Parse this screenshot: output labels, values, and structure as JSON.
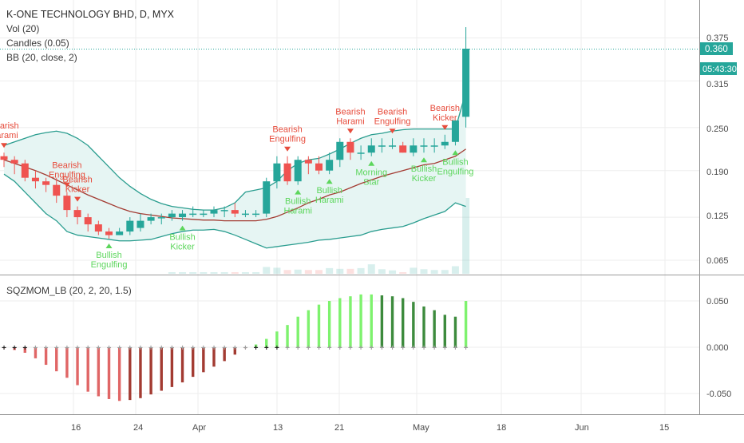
{
  "header": {
    "symbol_line": "K-ONE TECHNOLOGY BHD, D, MYX",
    "vol_line": "Vol (20)",
    "candles_line": "Candles (0.05)",
    "bb_line": "BB (20, close, 2)",
    "osc_line": "SQZMOM_LB (20, 2, 20, 1.5)"
  },
  "price_scale": {
    "ticks": [
      "0.375",
      "0.315",
      "0.250",
      "0.190",
      "0.125",
      "0.065"
    ],
    "current_price": "0.360",
    "countdown": "05:43:30"
  },
  "osc_scale": {
    "ticks": [
      "0.050",
      "0.000",
      "-0.050"
    ]
  },
  "time_axis": {
    "labels": [
      "16",
      "24",
      "Apr",
      "13",
      "21",
      "May",
      "18",
      "Jun",
      "15"
    ]
  },
  "colors": {
    "bull": "#26a69a",
    "bear": "#ef5350",
    "bb_band": "#2a9d8f",
    "bb_fill": "#e6f5f3",
    "bb_basis": "#a33b32",
    "mom_lime": "#7ef26e",
    "mom_green": "#3d8b3d",
    "mom_red": "#e06666",
    "mom_maroon": "#a33b32",
    "pattern_bear": "#e74c3c",
    "pattern_bull": "#5cd65c"
  },
  "chart_data": [
    {
      "type": "candlestick",
      "title": "K-ONE TECHNOLOGY BHD, D, MYX",
      "ylim": [
        0.04,
        0.4
      ],
      "ticks": [
        0.375,
        0.315,
        0.25,
        0.19,
        0.125,
        0.065
      ],
      "last_price": 0.36,
      "x": [
        "Mar 9",
        "Mar 10",
        "Mar 11",
        "Mar 12",
        "Mar 13",
        "Mar 16",
        "Mar 17",
        "Mar 18",
        "Mar 19",
        "Mar 20",
        "Mar 23",
        "Mar 24",
        "Mar 25",
        "Mar 26",
        "Mar 27",
        "Mar 30",
        "Mar 31",
        "Apr 1",
        "Apr 2",
        "Apr 3",
        "Apr 6",
        "Apr 7",
        "Apr 8",
        "Apr 9",
        "Apr 10",
        "Apr 13",
        "Apr 14",
        "Apr 15",
        "Apr 16",
        "Apr 17",
        "Apr 20",
        "Apr 21",
        "Apr 22",
        "Apr 23",
        "Apr 24",
        "Apr 27",
        "Apr 28",
        "Apr 29",
        "Apr 30",
        "May 4",
        "May 5",
        "May 6",
        "May 8",
        "May 11",
        "May 12"
      ],
      "series": [
        {
          "open": [
            0.21,
            0.205,
            0.2,
            0.18,
            0.175,
            0.17,
            0.155,
            0.135,
            0.125,
            0.115,
            0.105,
            0.1,
            0.105,
            0.11,
            0.12,
            0.125,
            0.125,
            0.125,
            0.13,
            0.13,
            0.13,
            0.135,
            0.135,
            0.13,
            0.13,
            0.13,
            0.175,
            0.2,
            0.175,
            0.205,
            0.2,
            0.19,
            0.205,
            0.23,
            0.215,
            0.215,
            0.225,
            0.225,
            0.225,
            0.215,
            0.225,
            0.225,
            0.225,
            0.23,
            0.265
          ],
          "high": [
            0.215,
            0.21,
            0.205,
            0.19,
            0.18,
            0.18,
            0.16,
            0.14,
            0.13,
            0.12,
            0.11,
            0.11,
            0.125,
            0.13,
            0.13,
            0.13,
            0.135,
            0.135,
            0.14,
            0.135,
            0.14,
            0.14,
            0.145,
            0.135,
            0.135,
            0.18,
            0.21,
            0.21,
            0.21,
            0.21,
            0.21,
            0.215,
            0.235,
            0.235,
            0.225,
            0.235,
            0.235,
            0.235,
            0.23,
            0.235,
            0.235,
            0.235,
            0.24,
            0.26,
            0.39
          ],
          "low": [
            0.195,
            0.185,
            0.175,
            0.165,
            0.16,
            0.145,
            0.125,
            0.115,
            0.105,
            0.1,
            0.095,
            0.1,
            0.1,
            0.105,
            0.115,
            0.115,
            0.12,
            0.12,
            0.125,
            0.125,
            0.125,
            0.125,
            0.125,
            0.125,
            0.125,
            0.125,
            0.165,
            0.17,
            0.17,
            0.185,
            0.185,
            0.185,
            0.195,
            0.205,
            0.205,
            0.21,
            0.215,
            0.22,
            0.215,
            0.21,
            0.215,
            0.215,
            0.22,
            0.225,
            0.25
          ],
          "close": [
            0.205,
            0.2,
            0.18,
            0.175,
            0.17,
            0.155,
            0.135,
            0.125,
            0.115,
            0.105,
            0.1,
            0.105,
            0.12,
            0.12,
            0.125,
            0.125,
            0.13,
            0.13,
            0.13,
            0.13,
            0.135,
            0.135,
            0.13,
            0.13,
            0.13,
            0.175,
            0.2,
            0.175,
            0.205,
            0.2,
            0.19,
            0.205,
            0.23,
            0.215,
            0.215,
            0.225,
            0.225,
            0.225,
            0.215,
            0.225,
            0.225,
            0.225,
            0.23,
            0.26,
            0.36
          ]
        },
        {
          "name": "BB upper",
          "values": [
            0.225,
            0.23,
            0.235,
            0.24,
            0.243,
            0.245,
            0.242,
            0.235,
            0.225,
            0.21,
            0.195,
            0.18,
            0.168,
            0.158,
            0.15,
            0.144,
            0.14,
            0.138,
            0.136,
            0.135,
            0.135,
            0.138,
            0.145,
            0.16,
            0.163,
            0.166,
            0.175,
            0.19,
            0.2,
            0.205,
            0.207,
            0.213,
            0.22,
            0.228,
            0.235,
            0.24,
            0.242,
            0.245,
            0.247,
            0.248,
            0.248,
            0.248,
            0.248,
            0.248,
            0.3
          ]
        },
        {
          "name": "BB basis",
          "values": [
            0.205,
            0.2,
            0.195,
            0.19,
            0.184,
            0.177,
            0.17,
            0.163,
            0.156,
            0.15,
            0.144,
            0.138,
            0.133,
            0.13,
            0.128,
            0.126,
            0.124,
            0.123,
            0.122,
            0.121,
            0.121,
            0.12,
            0.12,
            0.12,
            0.12,
            0.122,
            0.126,
            0.132,
            0.138,
            0.145,
            0.15,
            0.156,
            0.16,
            0.166,
            0.172,
            0.177,
            0.182,
            0.186,
            0.19,
            0.194,
            0.198,
            0.2,
            0.205,
            0.21,
            0.22
          ]
        },
        {
          "name": "BB lower",
          "values": [
            0.185,
            0.175,
            0.16,
            0.145,
            0.13,
            0.12,
            0.105,
            0.1,
            0.098,
            0.096,
            0.094,
            0.092,
            0.092,
            0.093,
            0.094,
            0.098,
            0.102,
            0.105,
            0.107,
            0.107,
            0.108,
            0.105,
            0.1,
            0.094,
            0.088,
            0.082,
            0.084,
            0.086,
            0.088,
            0.09,
            0.093,
            0.094,
            0.096,
            0.098,
            0.1,
            0.105,
            0.108,
            0.11,
            0.112,
            0.117,
            0.123,
            0.128,
            0.133,
            0.145,
            0.14
          ]
        },
        {
          "name": "Volume",
          "values": [
            0,
            0,
            0,
            0,
            0,
            0,
            0,
            0,
            0,
            0,
            0,
            0,
            0,
            0,
            0,
            0,
            0.004,
            0.003,
            0.003,
            0.003,
            0.002,
            0.002,
            0.002,
            0.002,
            0.002,
            0.018,
            0.016,
            0.01,
            0.011,
            0.01,
            0.01,
            0.015,
            0.013,
            0.013,
            0.015,
            0.025,
            0.012,
            0.009,
            0.004,
            0.016,
            0.012,
            0.01,
            0.01,
            0.02,
            0.2
          ]
        }
      ],
      "annotations": [
        {
          "text": "Bearish Harami",
          "index": 0,
          "kind": "bearish"
        },
        {
          "text": "Bearish Engulfing",
          "index": 6,
          "kind": "bearish"
        },
        {
          "text": "Bearish Kicker",
          "index": 7,
          "kind": "bearish"
        },
        {
          "text": "Bullish Engulfing",
          "index": 10,
          "kind": "bullish"
        },
        {
          "text": "Bullish Kicker",
          "index": 17,
          "kind": "bullish"
        },
        {
          "text": "Bearish Engulfing",
          "index": 27,
          "kind": "bearish"
        },
        {
          "text": "Bullish Harami",
          "index": 28,
          "kind": "bullish"
        },
        {
          "text": "Bullish Harami",
          "index": 31,
          "kind": "bullish"
        },
        {
          "text": "Bearish Harami",
          "index": 33,
          "kind": "bearish"
        },
        {
          "text": "Morning Star",
          "index": 35,
          "kind": "bullish"
        },
        {
          "text": "Bearish Engulfing",
          "index": 37,
          "kind": "bearish"
        },
        {
          "text": "Bullish Kicker",
          "index": 40,
          "kind": "bullish"
        },
        {
          "text": "Bearish Kicker",
          "index": 42,
          "kind": "bearish"
        },
        {
          "text": "Bullish Engulfing",
          "index": 43,
          "kind": "bullish"
        }
      ]
    },
    {
      "type": "bar",
      "title": "SQZMOM_LB (20, 2, 20, 1.5)",
      "ylim": [
        -0.075,
        0.07
      ],
      "ticks": [
        0.05,
        0.0,
        -0.05
      ],
      "x": [
        "Mar 9",
        "Mar 10",
        "Mar 11",
        "Mar 12",
        "Mar 13",
        "Mar 16",
        "Mar 17",
        "Mar 18",
        "Mar 19",
        "Mar 20",
        "Mar 23",
        "Mar 24",
        "Mar 25",
        "Mar 26",
        "Mar 27",
        "Mar 30",
        "Mar 31",
        "Apr 1",
        "Apr 2",
        "Apr 3",
        "Apr 6",
        "Apr 7",
        "Apr 8",
        "Apr 9",
        "Apr 10",
        "Apr 13",
        "Apr 14",
        "Apr 15",
        "Apr 16",
        "Apr 17",
        "Apr 20",
        "Apr 21",
        "Apr 22",
        "Apr 23",
        "Apr 24",
        "Apr 27",
        "Apr 28",
        "Apr 29",
        "Apr 30",
        "May 4",
        "May 5",
        "May 6",
        "May 8",
        "May 11",
        "May 12"
      ],
      "series": [
        {
          "name": "momentum",
          "values": [
            -0.001,
            -0.003,
            -0.006,
            -0.012,
            -0.019,
            -0.026,
            -0.033,
            -0.041,
            -0.048,
            -0.053,
            -0.056,
            -0.058,
            -0.057,
            -0.055,
            -0.051,
            -0.047,
            -0.043,
            -0.038,
            -0.032,
            -0.027,
            -0.021,
            -0.015,
            -0.008,
            -0.001,
            0.003,
            0.009,
            0.017,
            0.024,
            0.033,
            0.04,
            0.046,
            0.05,
            0.053,
            0.055,
            0.057,
            0.057,
            0.056,
            0.055,
            0.053,
            0.049,
            0.044,
            0.04,
            0.035,
            0.033,
            0.05
          ]
        }
      ]
    }
  ]
}
